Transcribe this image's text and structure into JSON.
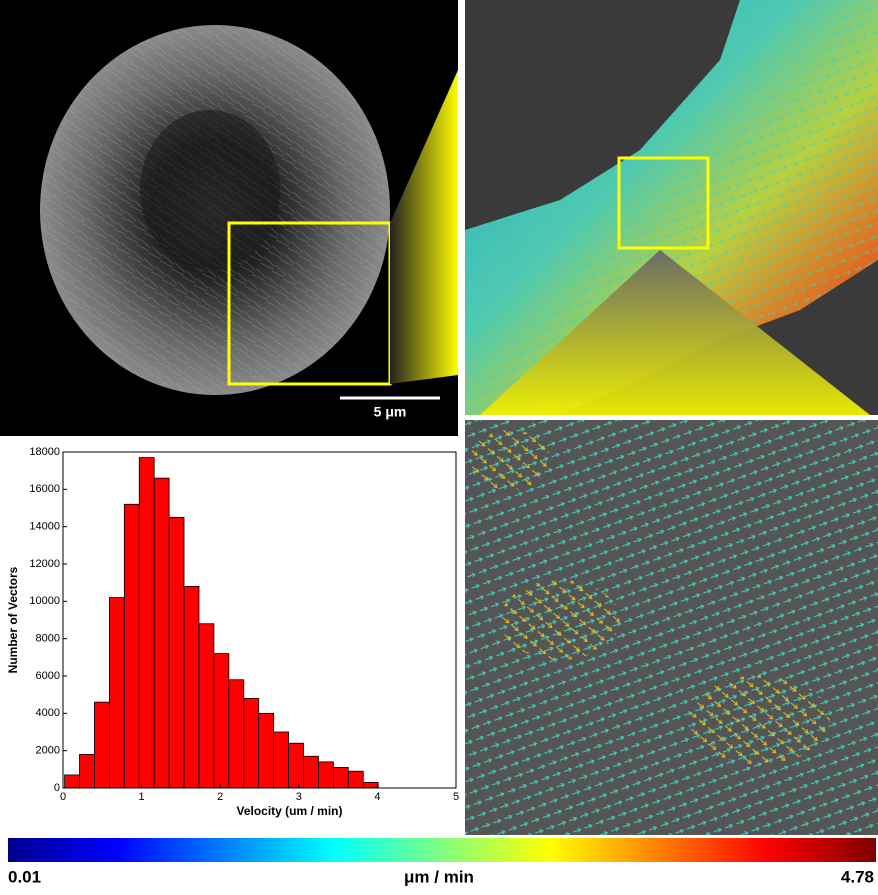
{
  "chart_data": {
    "type": "histogram",
    "x_label": "Velocity (um / min)",
    "y_label": "Number of Vectors",
    "bins": [
      0.02,
      0.21,
      0.4,
      0.59,
      0.78,
      0.97,
      1.16,
      1.35,
      1.54,
      1.73,
      1.92,
      2.11,
      2.3,
      2.49,
      2.68,
      2.87,
      3.06,
      3.25,
      3.44,
      3.63,
      3.82,
      4.01
    ],
    "counts": [
      700,
      1800,
      4600,
      10200,
      15200,
      17700,
      16600,
      14500,
      10800,
      8800,
      7200,
      5800,
      4800,
      4000,
      3000,
      2400,
      1700,
      1400,
      1100,
      900,
      300
    ],
    "color": "#ff0000",
    "xlim": [
      0,
      5
    ],
    "xticks": [
      0,
      1,
      2,
      3,
      4,
      5
    ],
    "ylim": [
      0,
      18000
    ],
    "yticks": [
      0,
      2000,
      4000,
      6000,
      8000,
      10000,
      12000,
      14000,
      16000,
      18000
    ]
  },
  "scale_bar": {
    "label": "5 μm"
  },
  "colorbar": {
    "min": 0.01,
    "max": 4.78,
    "unit": "μm / min"
  }
}
